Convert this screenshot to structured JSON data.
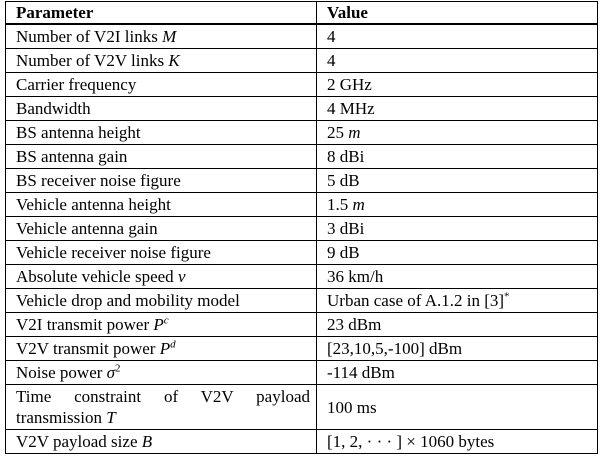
{
  "table": {
    "headers": [
      "Parameter",
      "Value"
    ],
    "rows": [
      {
        "parameter": "Number of V2I links M",
        "value": "4"
      },
      {
        "parameter": "Number of V2V links K",
        "value": "4"
      },
      {
        "parameter": "Carrier frequency",
        "value": "2 GHz"
      },
      {
        "parameter": "Bandwidth",
        "value": "4 MHz"
      },
      {
        "parameter": "BS antenna height",
        "value": "25 m"
      },
      {
        "parameter": "BS antenna gain",
        "value": "8 dBi"
      },
      {
        "parameter": "BS receiver noise figure",
        "value": "5 dB"
      },
      {
        "parameter": "Vehicle antenna height",
        "value": "1.5 m"
      },
      {
        "parameter": "Vehicle antenna gain",
        "value": "3 dBi"
      },
      {
        "parameter": "Vehicle receiver noise figure",
        "value": "9 dB"
      },
      {
        "parameter": "Absolute vehicle speed v",
        "value": "36 km/h"
      },
      {
        "parameter": "Vehicle drop and mobility model",
        "value": "Urban case of A.1.2 in [3]*"
      },
      {
        "parameter": "V2I transmit power P^c",
        "value": "23 dBm"
      },
      {
        "parameter": "V2V transmit power P^d",
        "value": "[23,10,5,-100] dBm"
      },
      {
        "parameter": "Noise power σ^2",
        "value": "-114 dBm"
      },
      {
        "parameter": "Time constraint of V2V payload transmission T",
        "value": "100 ms"
      },
      {
        "parameter": "V2V payload size B",
        "value": "[1, 2, · · · ] × 1060 bytes"
      }
    ]
  }
}
